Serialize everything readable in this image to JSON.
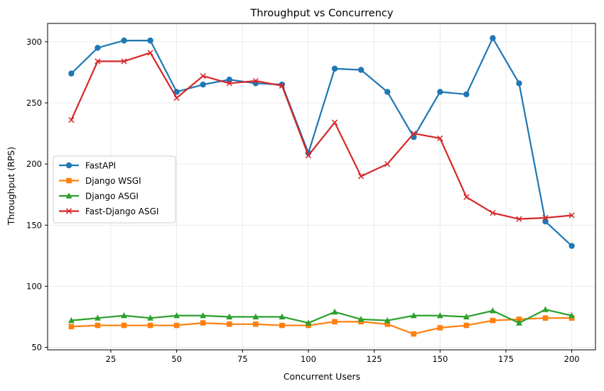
{
  "chart_data": {
    "type": "line",
    "title": "Throughput vs Concurrency",
    "xlabel": "Concurrent Users",
    "ylabel": "Throughput (RPS)",
    "xlim": [
      1,
      209
    ],
    "ylim": [
      48,
      315
    ],
    "xticks": [
      25,
      50,
      75,
      100,
      125,
      150,
      175,
      200
    ],
    "yticks": [
      50,
      100,
      150,
      200,
      250,
      300
    ],
    "grid": true,
    "legend_position": "center-left",
    "x": [
      10,
      20,
      30,
      40,
      50,
      60,
      70,
      80,
      90,
      100,
      110,
      120,
      130,
      140,
      150,
      160,
      170,
      180,
      190,
      200
    ],
    "series": [
      {
        "name": "FastAPI",
        "color": "#1f77b4",
        "marker": "circle",
        "values": [
          274,
          295,
          301,
          301,
          259,
          265,
          269,
          266,
          265,
          209,
          278,
          277,
          259,
          222,
          259,
          257,
          303,
          266,
          153,
          133
        ]
      },
      {
        "name": "Django WSGI",
        "color": "#ff7f0e",
        "marker": "square",
        "values": [
          67,
          68,
          68,
          68,
          68,
          70,
          69,
          69,
          68,
          68,
          71,
          71,
          69,
          61,
          66,
          68,
          72,
          73,
          74,
          74
        ]
      },
      {
        "name": "Django ASGI",
        "color": "#2ca02c",
        "marker": "triangle",
        "values": [
          72,
          74,
          76,
          74,
          76,
          76,
          75,
          75,
          75,
          70,
          79,
          73,
          72,
          76,
          76,
          75,
          80,
          70,
          81,
          76
        ]
      },
      {
        "name": "Fast-Django ASGI",
        "color": "#d62728",
        "marker": "x",
        "values": [
          236,
          284,
          284,
          291,
          254,
          272,
          266,
          268,
          264,
          207,
          234,
          190,
          200,
          225,
          221,
          173,
          160,
          155,
          156,
          158
        ]
      }
    ]
  }
}
